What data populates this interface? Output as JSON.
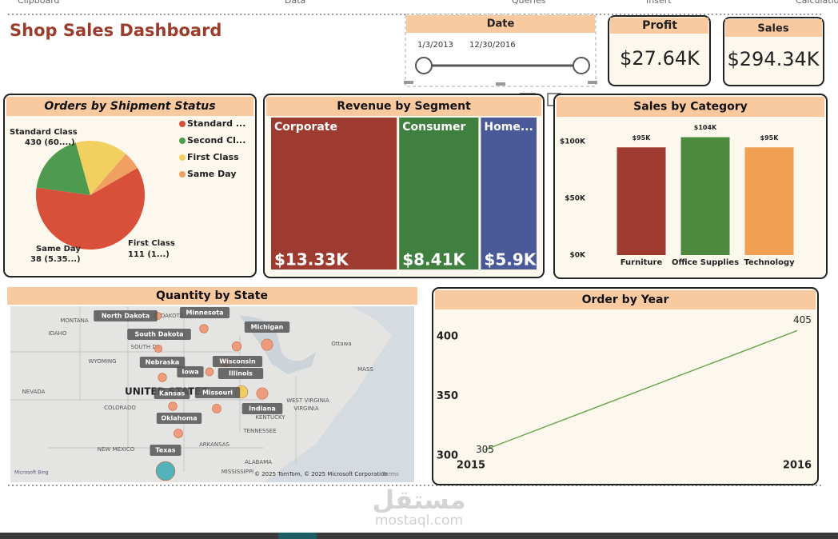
{
  "ribbon": [
    "Clipboard",
    "Data",
    "Queries",
    "Insert",
    "Calculations"
  ],
  "title": "Shop Sales Dashboard",
  "date_slicer": {
    "title": "Date",
    "start": "1/3/2013",
    "end": "12/30/2016"
  },
  "cards": [
    {
      "title": "Profit",
      "value": "$27.64K"
    },
    {
      "title": "Sales",
      "value": "$294.34K"
    }
  ],
  "chart_data": [
    {
      "type": "pie",
      "title": "Orders by Shipment Status",
      "categories": [
        "Standard Class",
        null,
        "First Class",
        "Same Day"
      ],
      "legend_labels": [
        "Standard ...",
        "Second Cl...",
        "First Class",
        "Same Day"
      ],
      "values": [
        430,
        131,
        111,
        38
      ],
      "value_labels": [
        "430 (60....)",
        null,
        "111 (1...)",
        "38 (5.35...)"
      ],
      "colors": [
        "#d9503a",
        "#4e9a4e",
        "#f2d060",
        "#f0a060"
      ]
    },
    {
      "type": "treemap",
      "title": "Revenue by Segment",
      "categories": [
        "Corporate",
        "Consumer",
        "Home..."
      ],
      "values": [
        13330,
        8410,
        5900
      ],
      "value_labels": [
        "$13.33K",
        "$8.41K",
        "$5.9K"
      ],
      "colors": [
        "#9e3b30",
        "#3f7f3f",
        "#4a5a98"
      ]
    },
    {
      "type": "bar",
      "title": "Sales by Category",
      "categories": [
        "Furniture",
        "Office Supplies",
        "Technology"
      ],
      "values": [
        95000,
        104000,
        95000
      ],
      "value_labels": [
        "$95K",
        "$104K",
        "$95K"
      ],
      "colors": [
        "#9e3b30",
        "#4e8a3e",
        "#f0a050"
      ],
      "ylim": [
        0,
        110000
      ],
      "yticks": [
        {
          "value": 0,
          "label": "$0K"
        },
        {
          "value": 50000,
          "label": "$50K"
        },
        {
          "value": 100000,
          "label": "$100K"
        }
      ],
      "grid": false
    },
    {
      "type": "map",
      "title": "Quantity by State",
      "categories": [
        "North Dakota",
        "Minnesota",
        "South Dakota",
        "Michigan",
        "Wisconsin",
        "Nebraska",
        "Iowa",
        "Illinois",
        "Kansas",
        "Missouri",
        "Indiana",
        "Oklahoma",
        "Texas",
        null
      ],
      "values": [
        40,
        50,
        40,
        90,
        60,
        50,
        45,
        60,
        50,
        55,
        90,
        55,
        250,
        110
      ],
      "colors": [
        "#f0906a",
        "#f0906a",
        "#f0906a",
        "#f0906a",
        "#f0906a",
        "#f0906a",
        "#f0906a",
        "#f0906a",
        "#f0906a",
        "#f0906a",
        "#f0906a",
        "#f0906a",
        "#3aaab0",
        "#f2c94c"
      ],
      "base_labels": [
        "MONTANA",
        "IDAHO",
        "WYOMING",
        "NEVADA",
        "UNITED STATES",
        "COLORADO",
        "NEW MEXICO",
        "ARKANSAS",
        "TENNESSEE",
        "KENTUCKY",
        "VIRGINIA",
        "WEST VIRGINIA",
        "ALABAMA",
        "MISSISSIPPI",
        "Ottawa",
        "MASS",
        "DAKOTA",
        "SOUTH DA"
      ],
      "attribution": [
        "Microsoft Bing",
        "© 2025 TomTom, © 2025 Microsoft Corporation",
        "Terms"
      ]
    },
    {
      "type": "line",
      "title": "Order by Year",
      "categories": [
        "2015",
        "2016"
      ],
      "values": [
        305,
        405
      ],
      "color": "#6aa84f",
      "ylim": [
        298,
        410
      ],
      "yticks": [
        300,
        350,
        400
      ]
    }
  ],
  "watermark": [
    "مستقل",
    "mostaql.com"
  ]
}
